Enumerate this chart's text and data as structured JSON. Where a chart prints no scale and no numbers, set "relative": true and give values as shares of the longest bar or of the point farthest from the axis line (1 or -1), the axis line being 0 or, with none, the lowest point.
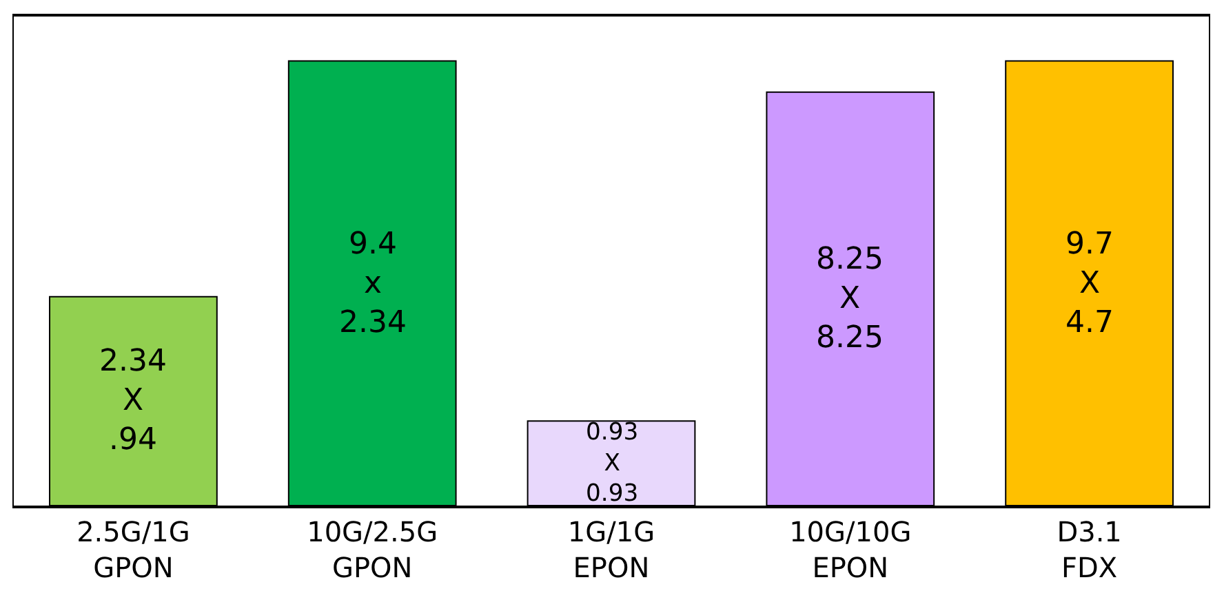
{
  "chart_data": {
    "type": "bar",
    "relative": true,
    "categories": [
      "2.5G/1G\nGPON",
      "10G/2.5G\nGPON",
      "1G/1G\nEPON",
      "10G/10G\nEPON",
      "D3.1\nFDX"
    ],
    "values": [
      0.47,
      1,
      0.19,
      0.93,
      1
    ],
    "colors": [
      "#92d050",
      "#00b050",
      "#e8d8fc",
      "#cc99ff",
      "#ffc000"
    ],
    "annotations": [
      "2.34\nX\n.94",
      "9.4\nx\n2.34",
      "0.93\nX\n0.93",
      "8.25\nX\n8.25",
      "9.7\nX\n4.7"
    ],
    "legend": false
  }
}
